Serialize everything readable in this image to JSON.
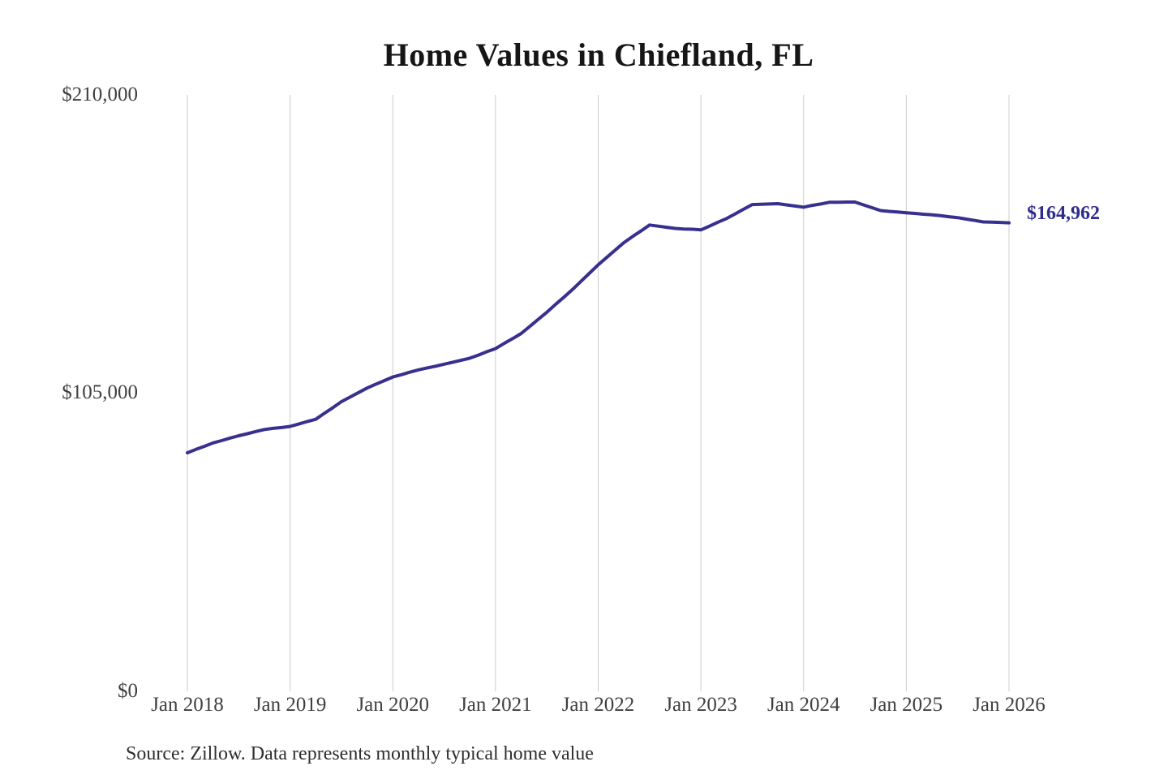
{
  "page": {
    "title": "Home Values in Chiefland, FL",
    "source_note": "Source: Zillow. Data represents monthly typical home value"
  },
  "colors": {
    "background": "#ffffff",
    "line": "#37308f",
    "end_label": "#2f2b8d",
    "grid": "#cccccc",
    "title_text": "#161616",
    "axis_text": "#3f3f3f"
  },
  "chart_data": {
    "type": "line",
    "title": "Home Values in Chiefland, FL",
    "xlabel": "",
    "ylabel": "",
    "x_unit": "month",
    "x_range": [
      "Jan 2018",
      "Jan 2026"
    ],
    "x_tick_labels": [
      "Jan 2018",
      "Jan 2019",
      "Jan 2020",
      "Jan 2021",
      "Jan 2022",
      "Jan 2023",
      "Jan 2024",
      "Jan 2025",
      "Jan 2026"
    ],
    "x_tick_month_interval": 12,
    "y_tick_labels": [
      "$0",
      "$105,000",
      "$210,000"
    ],
    "y_tick_values": [
      0,
      105000,
      210000
    ],
    "ylim": [
      0,
      210000
    ],
    "grid": "vertical",
    "legend_position": "none",
    "end_label": "$164,962",
    "final_value": 164962,
    "series": [
      {
        "name": "Monthly typical home value",
        "values": [
          84000,
          85200,
          86300,
          87500,
          88300,
          89200,
          90000,
          90700,
          91500,
          92200,
          92600,
          92900,
          93300,
          94100,
          95000,
          95800,
          97900,
          99900,
          102000,
          103600,
          105200,
          106800,
          108100,
          109400,
          110700,
          111500,
          112400,
          113200,
          113900,
          114500,
          115200,
          115900,
          116600,
          117300,
          118400,
          119600,
          120700,
          122500,
          124200,
          126000,
          128500,
          131000,
          133500,
          136200,
          138800,
          141500,
          144400,
          147300,
          150200,
          152800,
          155400,
          158000,
          160100,
          162100,
          164200,
          163800,
          163400,
          163000,
          162800,
          162700,
          162500,
          163800,
          165200,
          166500,
          168100,
          169800,
          171400,
          171500,
          171600,
          171700,
          171300,
          170900,
          170500,
          171100,
          171600,
          172200,
          172200,
          172300,
          172300,
          171300,
          170300,
          169300,
          169000,
          168800,
          168500,
          168300,
          168000,
          167800,
          167500,
          167100,
          166800,
          166300,
          165800,
          165300,
          165200,
          165100,
          164962
        ]
      }
    ]
  }
}
